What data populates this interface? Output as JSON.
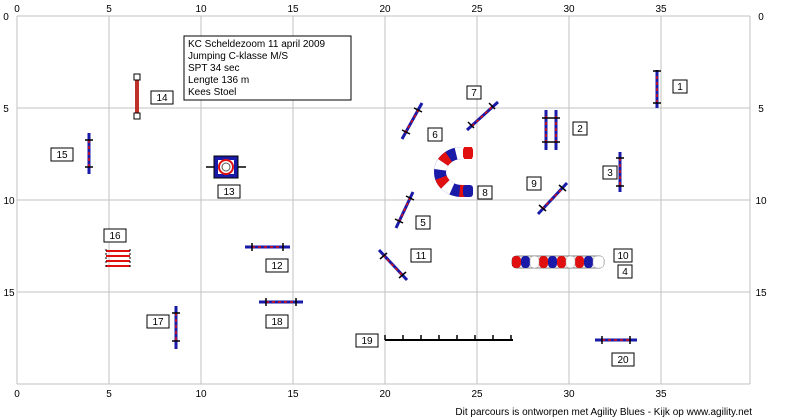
{
  "info": {
    "lines": [
      "KC Scheldezoom 11 april 2009",
      "Jumping C-klasse M/S",
      "SPT 34 sec",
      "Lengte 136 m",
      "Kees Stoel"
    ]
  },
  "axes": {
    "x_ticks": [
      "0",
      "5",
      "10",
      "15",
      "20",
      "25",
      "30",
      "35"
    ],
    "y_ticks": [
      "0",
      "5",
      "10",
      "15"
    ]
  },
  "obstacles": [
    {
      "num": "1",
      "type": "jump"
    },
    {
      "num": "2",
      "type": "double-jump"
    },
    {
      "num": "3",
      "type": "jump"
    },
    {
      "num": "4",
      "type": "tunnel"
    },
    {
      "num": "5",
      "type": "jump"
    },
    {
      "num": "6",
      "type": "jump"
    },
    {
      "num": "7",
      "type": "jump"
    },
    {
      "num": "8",
      "type": "curved-tunnel"
    },
    {
      "num": "9",
      "type": "jump"
    },
    {
      "num": "10",
      "type": "tunnel"
    },
    {
      "num": "11",
      "type": "jump"
    },
    {
      "num": "12",
      "type": "jump"
    },
    {
      "num": "13",
      "type": "tyre"
    },
    {
      "num": "14",
      "type": "long-jump"
    },
    {
      "num": "15",
      "type": "jump"
    },
    {
      "num": "16",
      "type": "long-jump"
    },
    {
      "num": "17",
      "type": "jump"
    },
    {
      "num": "18",
      "type": "jump"
    },
    {
      "num": "19",
      "type": "weave-poles"
    },
    {
      "num": "20",
      "type": "jump"
    }
  ],
  "colors": {
    "grid": "#c0c0c0",
    "blue": "#1a1aa8",
    "red": "#e01010",
    "wall": "#c0302a"
  },
  "footer": "Dit parcours is ontworpen met Agility Blues - Kijk op www.agility.net"
}
